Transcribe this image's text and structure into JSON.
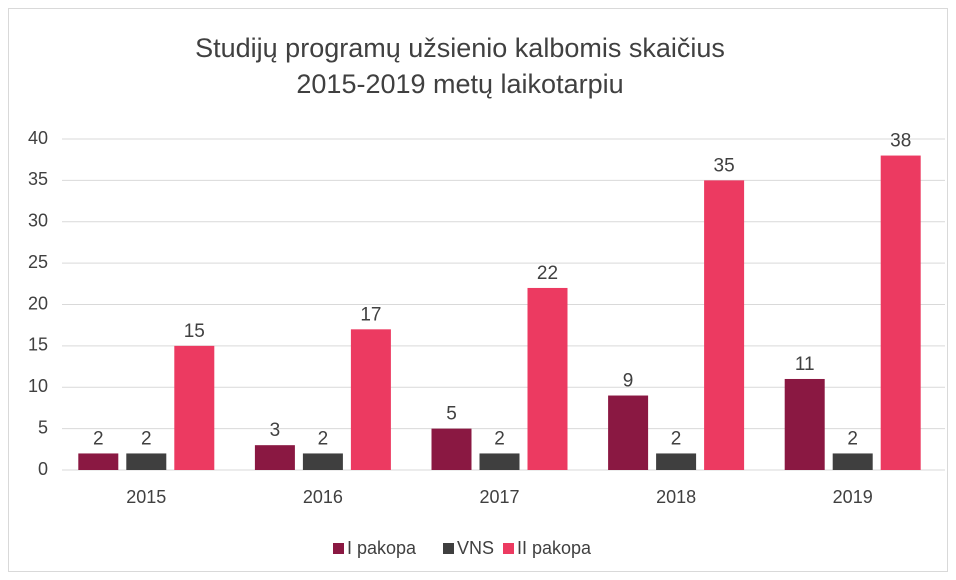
{
  "chart_data": {
    "type": "bar",
    "title": "Studijų programų užsienio kalbomis skaičius 2015-2019 metų laikotarpiu",
    "categories": [
      "2015",
      "2016",
      "2017",
      "2018",
      "2019"
    ],
    "series": [
      {
        "name": "I pakopa",
        "color": "#8a1842",
        "values": [
          2,
          3,
          5,
          9,
          11
        ]
      },
      {
        "name": "VNS",
        "color": "#3f3f3f",
        "values": [
          2,
          2,
          2,
          2,
          2
        ]
      },
      {
        "name": "II pakopa",
        "color": "#ec3a61",
        "values": [
          15,
          17,
          22,
          35,
          38
        ]
      }
    ],
    "ylim": [
      0,
      40
    ],
    "yticks": [
      0,
      5,
      10,
      15,
      20,
      25,
      30,
      35,
      40
    ],
    "grid": true,
    "legend": "bottom"
  }
}
